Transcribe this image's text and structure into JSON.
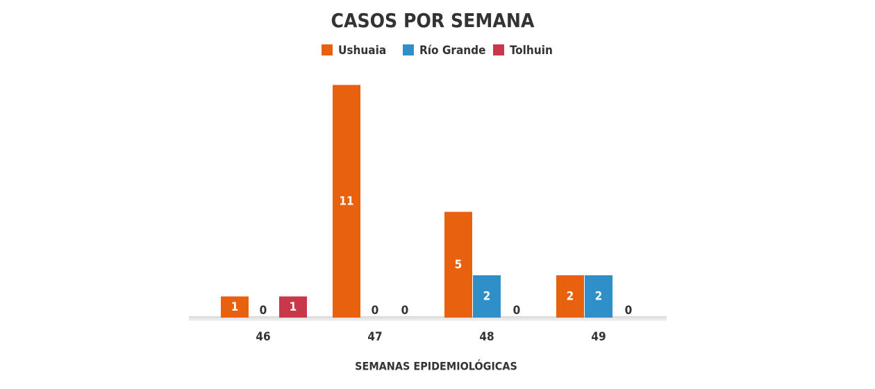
{
  "chart_data": {
    "type": "bar",
    "title": "CASOS POR SEMANA",
    "x_label": "SEMANAS EPIDEMIOLÓGICAS",
    "categories": [
      "46",
      "47",
      "48",
      "49"
    ],
    "series": [
      {
        "name": "Ushuaia",
        "color": "#e8610f",
        "values": [
          1,
          11,
          5,
          2
        ]
      },
      {
        "name": "Río Grande",
        "color": "#2f8fc8",
        "values": [
          0,
          0,
          2,
          2
        ]
      },
      {
        "name": "Tolhuin",
        "color": "#c8384a",
        "values": [
          1,
          0,
          0,
          0
        ]
      }
    ],
    "legend": "top"
  }
}
